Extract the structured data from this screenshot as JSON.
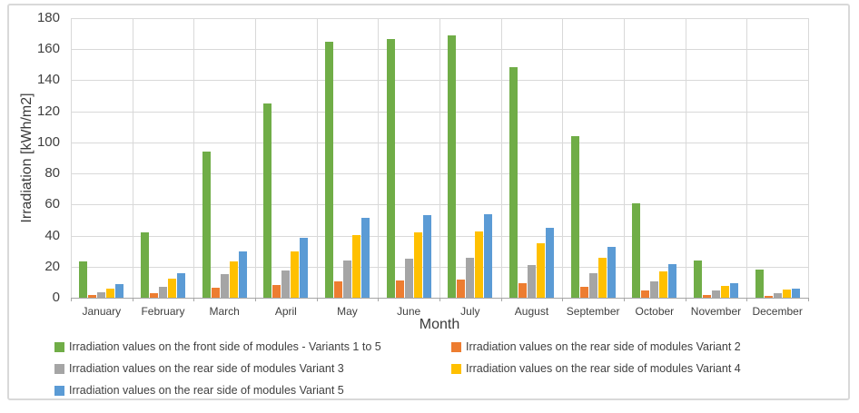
{
  "chart_data": {
    "type": "bar",
    "title": "",
    "xlabel": "Month",
    "ylabel": "Irradiation [kWh/m2]",
    "ylim": [
      0,
      180
    ],
    "ytick_step": 20,
    "grid": true,
    "legend_position": "bottom",
    "legend_columns": 2,
    "categories": [
      "January",
      "February",
      "March",
      "April",
      "May",
      "June",
      "July",
      "August",
      "September",
      "October",
      "November",
      "December"
    ],
    "series": [
      {
        "name": "Irradiation values on the front side of modules - Variants 1 to 5",
        "color": "#70AD47",
        "values": [
          23.5,
          42,
          94,
          125,
          165,
          166.5,
          169,
          148.5,
          104,
          61,
          24,
          18
        ]
      },
      {
        "name": "Irradiation values on the rear side of modules Variant 2",
        "color": "#ED7D31",
        "values": [
          1.5,
          3,
          6.5,
          8,
          10.5,
          11,
          11.5,
          9.5,
          7,
          4.5,
          1.5,
          1
        ]
      },
      {
        "name": "Irradiation values on the rear side of modules Variant 3",
        "color": "#A5A5A5",
        "values": [
          3.5,
          7,
          15,
          17.5,
          24,
          25,
          25.5,
          21,
          15.5,
          10.5,
          4.5,
          3
        ]
      },
      {
        "name": "Irradiation values on the rear side of modules Variant 4",
        "color": "#FFC000",
        "values": [
          6,
          12,
          23.5,
          30,
          40.5,
          42,
          42.5,
          35,
          25.5,
          17,
          7.5,
          5
        ]
      },
      {
        "name": "Irradiation values on the rear side of modules Variant 5",
        "color": "#5B9BD5",
        "values": [
          8.5,
          15.5,
          30,
          38.5,
          51.5,
          53,
          54,
          45,
          32.5,
          21.5,
          9.5,
          6
        ]
      }
    ],
    "colors": {
      "gridline": "#d9d9d9",
      "axis_line": "#a6a6a6",
      "text": "#404040",
      "frame_border": "#d9d9d9"
    }
  }
}
